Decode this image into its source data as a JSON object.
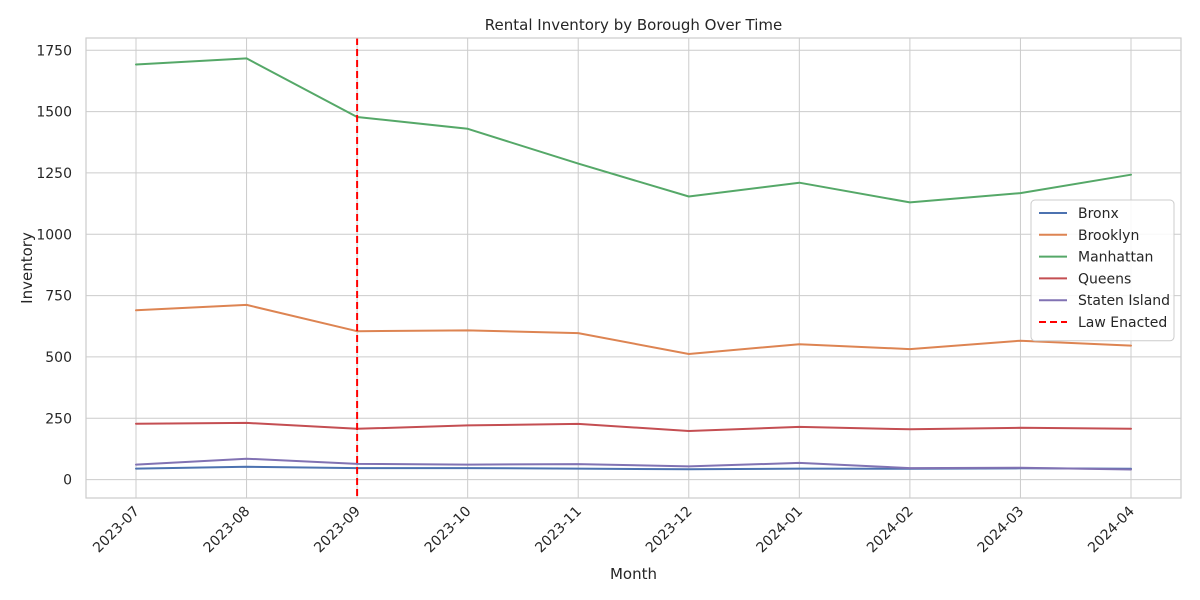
{
  "chart_data": {
    "type": "line",
    "title": "Rental Inventory by Borough Over Time",
    "xlabel": "Month",
    "ylabel": "Inventory",
    "categories": [
      "2023-07",
      "2023-08",
      "2023-09",
      "2023-10",
      "2023-11",
      "2023-12",
      "2024-01",
      "2024-02",
      "2024-03",
      "2024-04"
    ],
    "ylim": [
      -75,
      1800
    ],
    "yticks": [
      0,
      250,
      500,
      750,
      1000,
      1250,
      1500,
      1750
    ],
    "grid": true,
    "legend_position": "center-right",
    "series": [
      {
        "name": "Bronx",
        "color": "#4c72b0",
        "values": [
          45,
          52,
          47,
          47,
          45,
          42,
          45,
          44,
          46,
          44
        ]
      },
      {
        "name": "Brooklyn",
        "color": "#dd8452",
        "values": [
          690,
          712,
          605,
          608,
          597,
          512,
          552,
          532,
          566,
          546
        ]
      },
      {
        "name": "Manhattan",
        "color": "#55a868",
        "values": [
          1692,
          1717,
          1478,
          1430,
          1288,
          1154,
          1210,
          1130,
          1168,
          1243
        ]
      },
      {
        "name": "Queens",
        "color": "#c44e52",
        "values": [
          228,
          231,
          207,
          221,
          227,
          198,
          215,
          205,
          211,
          207
        ]
      },
      {
        "name": "Staten Island",
        "color": "#8172b3",
        "values": [
          61,
          85,
          64,
          61,
          63,
          54,
          68,
          47,
          48,
          41
        ]
      }
    ],
    "annotations": [
      {
        "type": "vline",
        "x": "2023-09",
        "label": "Law Enacted",
        "color": "#ff0000",
        "style": "dashed"
      }
    ]
  }
}
